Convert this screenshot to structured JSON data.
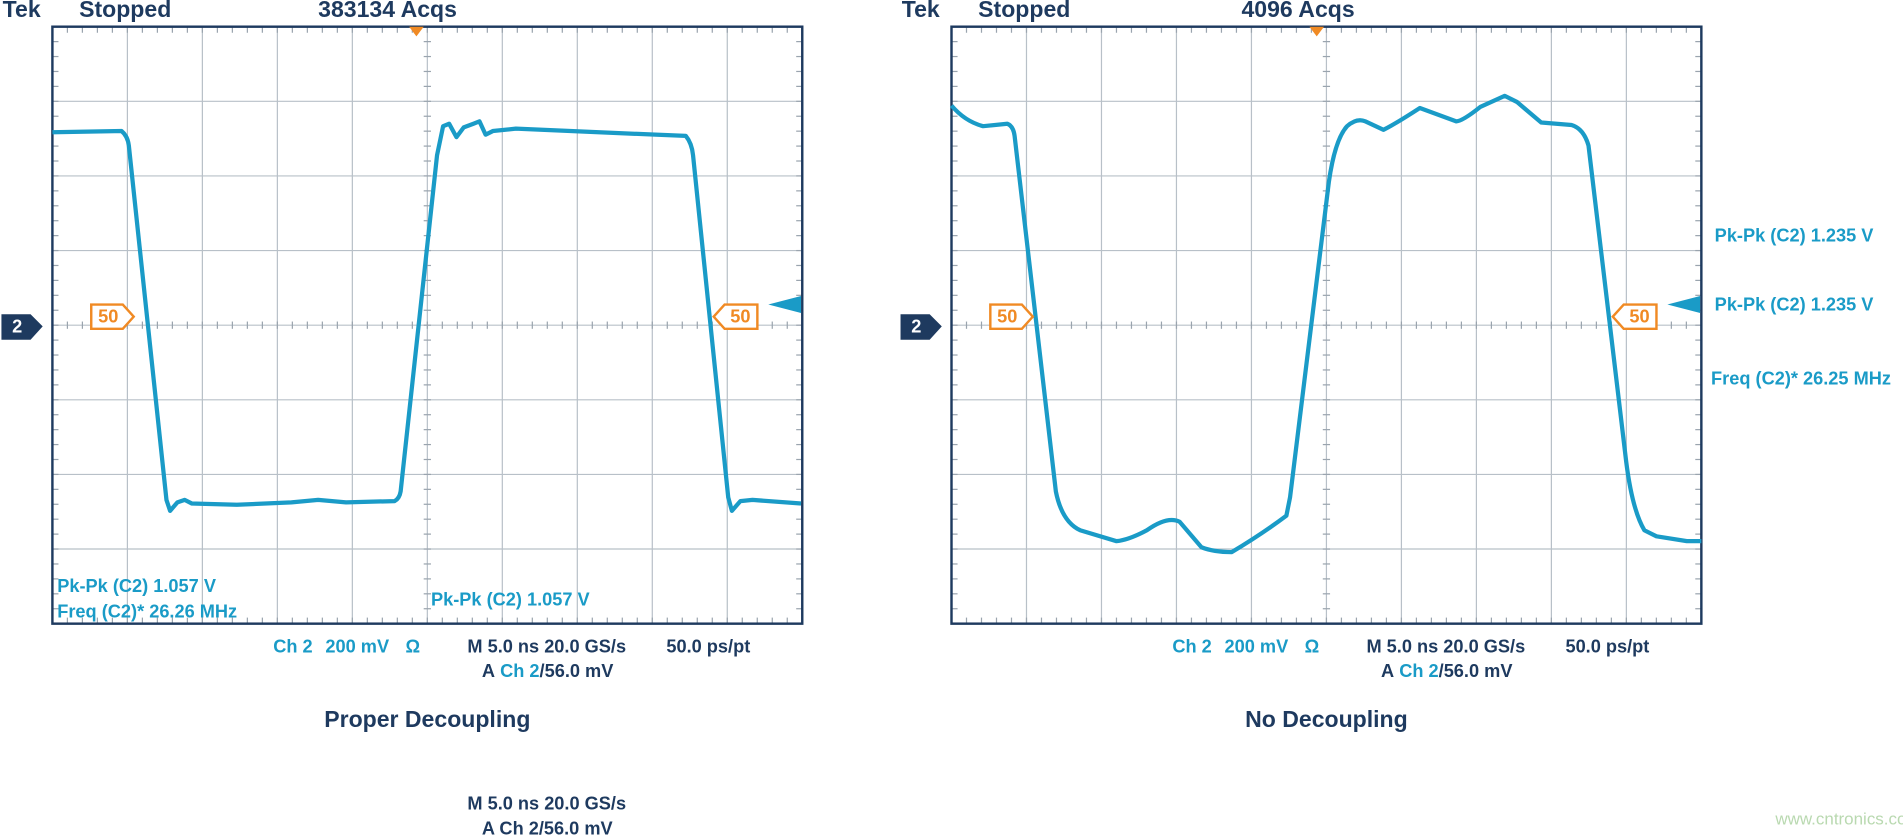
{
  "panels": [
    {
      "header": {
        "brand": "Tek",
        "status": "Stopped",
        "acqs": "383134 Acqs"
      },
      "channel_marker": "2",
      "trigger_marker": "50",
      "measurements": [
        "Pk-Pk (C2) 1.057 V",
        "Freq (C2)*  26.26 MHz",
        "Pk-Pk (C2) 1.057 V"
      ],
      "footer": {
        "channel": "Ch 2",
        "scale": "200 mV",
        "coupling": "Ω",
        "timebase": "M 5.0 ns 20.0 GS/s",
        "record": "50.0 ps/pt",
        "trigger_prefix": "A",
        "trigger_channel": "Ch 2",
        "trigger_level": "/56.0 mV"
      },
      "caption": "Proper Decoupling"
    },
    {
      "header": {
        "brand": "Tek",
        "status": "Stopped",
        "acqs": "4096 Acqs"
      },
      "channel_marker": "2",
      "trigger_marker": "50",
      "measurements": [
        "Pk-Pk (C2)  1.235 V",
        "Pk-Pk (C2)  1.235 V",
        "Freq (C2)*  26.25 MHz"
      ],
      "footer": {
        "channel": "Ch 2",
        "scale": "200 mV",
        "coupling": "Ω",
        "timebase": "M 5.0 ns 20.0 GS/s",
        "record": "50.0 ps/pt",
        "trigger_prefix": "A",
        "trigger_channel": "Ch 2",
        "trigger_level": "/56.0 mV"
      },
      "caption": "No Decoupling"
    }
  ],
  "footnote": {
    "timebase": "M 5.0 ns 20.0 GS/s",
    "trigger": "A Ch 2/56.0 mV"
  },
  "watermark": "www.cntronics.com"
}
